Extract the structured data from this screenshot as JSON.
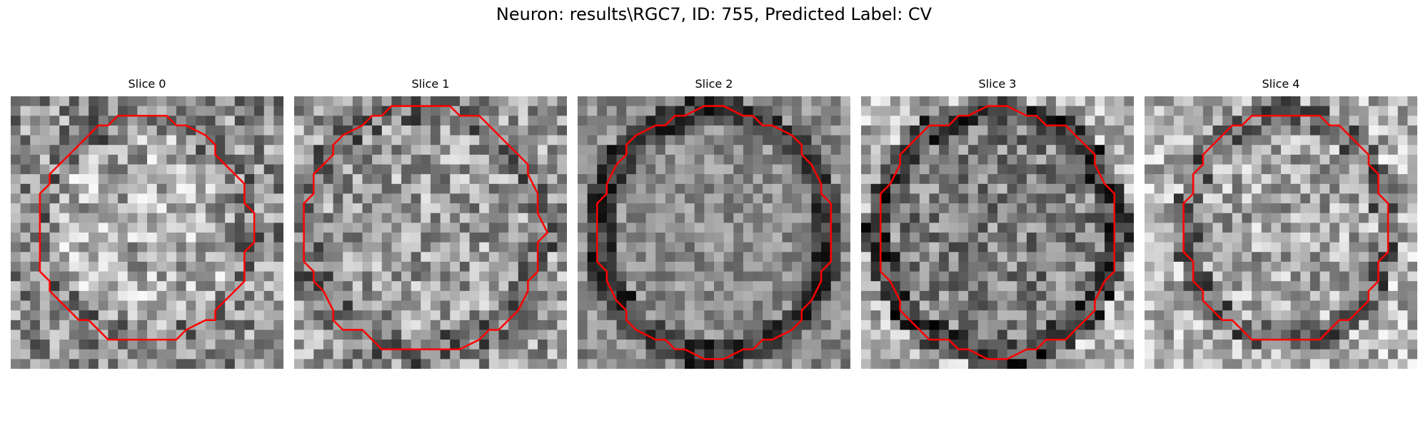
{
  "figure": {
    "title": "Neuron: results\\RGC7, ID: 755, Predicted Label: CV"
  },
  "panels": [
    {
      "title": "Slice 0"
    },
    {
      "title": "Slice 1"
    },
    {
      "title": "Slice 2"
    },
    {
      "title": "Slice 3"
    },
    {
      "title": "Slice 4"
    }
  ],
  "colors": {
    "contour": "#ff0000",
    "background": "#ffffff"
  }
}
